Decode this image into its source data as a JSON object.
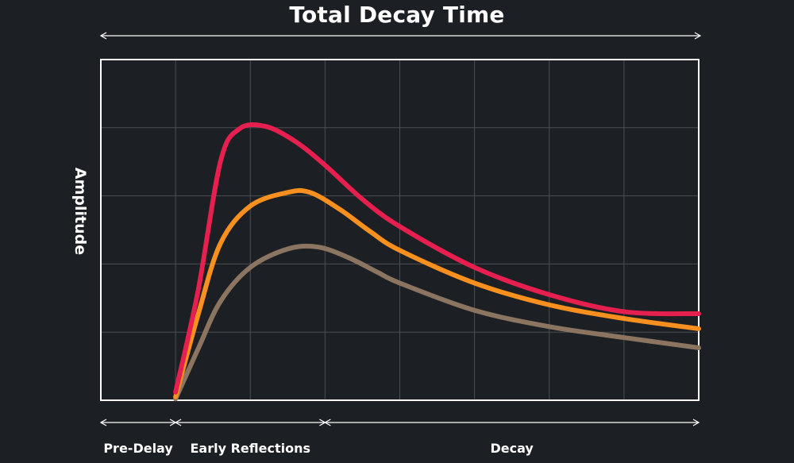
{
  "chart_data": {
    "type": "line",
    "title": "Total Decay Time",
    "ylabel": "Amplitude",
    "xlabel": "",
    "x_range": [
      0,
      8
    ],
    "ylim": [
      0,
      5
    ],
    "grid": true,
    "legend": "none",
    "segments": [
      {
        "label": "Pre-Delay",
        "start": 0,
        "end": 1
      },
      {
        "label": "Early Reflections",
        "start": 1,
        "end": 3
      },
      {
        "label": "Decay",
        "start": 3,
        "end": 8
      }
    ],
    "series": [
      {
        "color": "#e51f4e",
        "points": [
          [
            1,
            0.12
          ],
          [
            1.3,
            1.6
          ],
          [
            1.6,
            3.5
          ],
          [
            1.85,
            3.98
          ],
          [
            2.2,
            4.02
          ],
          [
            2.6,
            3.8
          ],
          [
            3,
            3.45
          ],
          [
            3.5,
            2.95
          ],
          [
            4,
            2.55
          ],
          [
            5,
            1.95
          ],
          [
            6,
            1.55
          ],
          [
            7,
            1.3
          ],
          [
            8,
            1.27
          ]
        ]
      },
      {
        "color": "#f7901e",
        "points": [
          [
            1,
            0.05
          ],
          [
            1.3,
            1.25
          ],
          [
            1.6,
            2.3
          ],
          [
            2,
            2.85
          ],
          [
            2.5,
            3.05
          ],
          [
            2.8,
            3.05
          ],
          [
            3.2,
            2.8
          ],
          [
            3.6,
            2.48
          ],
          [
            4,
            2.2
          ],
          [
            5,
            1.72
          ],
          [
            6,
            1.4
          ],
          [
            7,
            1.2
          ],
          [
            8,
            1.05
          ]
        ]
      },
      {
        "color": "#8b7560",
        "points": [
          [
            1,
            0.02
          ],
          [
            1.3,
            0.75
          ],
          [
            1.6,
            1.45
          ],
          [
            2,
            1.95
          ],
          [
            2.5,
            2.22
          ],
          [
            2.9,
            2.25
          ],
          [
            3.3,
            2.1
          ],
          [
            3.7,
            1.88
          ],
          [
            4,
            1.72
          ],
          [
            5,
            1.32
          ],
          [
            6,
            1.08
          ],
          [
            7,
            0.92
          ],
          [
            8,
            0.77
          ]
        ]
      }
    ]
  }
}
